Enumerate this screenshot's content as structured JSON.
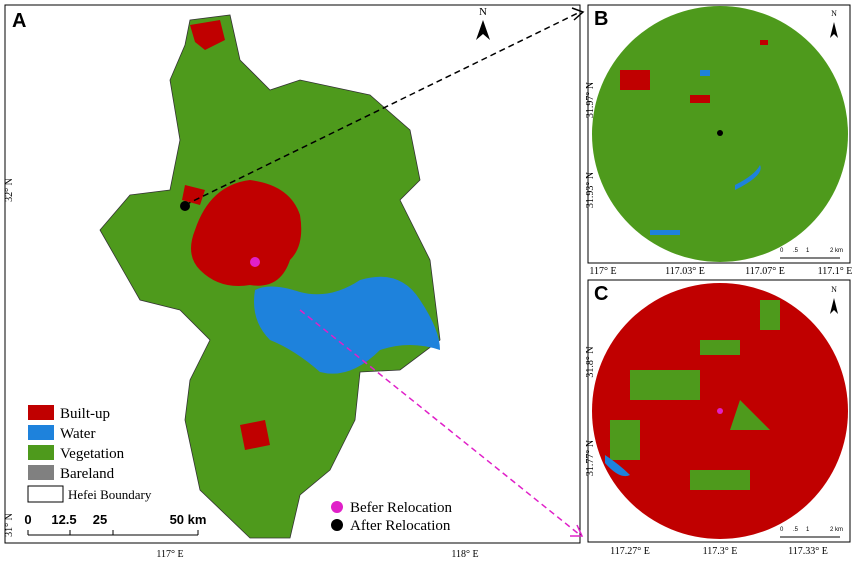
{
  "panel_a": {
    "label": "A",
    "north": "N",
    "legend": [
      "Built-up",
      "Water",
      "Vegetation",
      "Bareland"
    ],
    "boundary": "Hefei Boundary",
    "scale": [
      "0",
      "12.5",
      "25",
      "50 km"
    ],
    "points": [
      "Befer Relocation",
      "After Relocation"
    ],
    "x_axis": [
      "117°  E",
      "118°  E"
    ],
    "y_axis": [
      "32°  N",
      "31°  N"
    ]
  },
  "panel_b": {
    "label": "B",
    "north": "N",
    "scale": [
      "0",
      ".5",
      "1",
      "2 km"
    ],
    "x_axis": [
      "117°  E",
      "117.03°  E",
      "117.07°  E",
      "117.1°  E"
    ],
    "y_axis": [
      "31.97°  N",
      "31.93°  N"
    ]
  },
  "panel_c": {
    "label": "C",
    "north": "N",
    "scale": [
      "0",
      ".5",
      "1",
      "2 km"
    ],
    "x_axis": [
      "117.27°  E",
      "117.3°  E",
      "117.33°  E"
    ],
    "y_axis": [
      "31.8°  N",
      "31.77°  N"
    ]
  }
}
